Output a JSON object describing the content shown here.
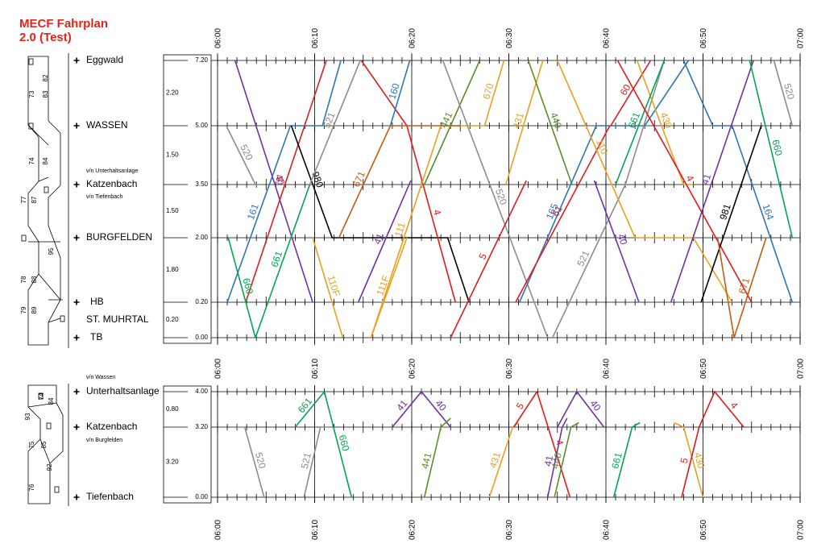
{
  "title": "MECF Fahrplan",
  "subtitle": "2.0 (Test)",
  "times": [
    "06:00",
    "06:10",
    "06:20",
    "06:30",
    "06:40",
    "06:50",
    "07:00"
  ],
  "panels": [
    {
      "stations": [
        {
          "name": "Eggwald",
          "km": {
            "value": 7.2,
            "label": "7.20"
          }
        },
        {
          "name": "WASSEN",
          "km": {
            "value": 5.0,
            "label": "5.00"
          }
        },
        {
          "name": "Katzenbach",
          "km": {
            "value": 3.5,
            "label": "3.50"
          }
        },
        {
          "name": "BURGFELDEN",
          "km": {
            "value": 2.0,
            "label": "2.00"
          }
        },
        {
          "name": "HB",
          "km": {
            "value": 0.2,
            "label": "0.20"
          }
        },
        {
          "name": "TB",
          "km": {
            "value": 0.0,
            "label": "0.00"
          }
        }
      ],
      "extra_station": "ST. MUHRTAL",
      "notes": [
        "v/n Unterhaltsanlage",
        "v/n Tiefenbach"
      ],
      "sections": [
        "2.20",
        "1.50",
        "1.50",
        "1.80",
        "0.20"
      ],
      "trains": [
        {
          "label": "40",
          "color": "#7030a0",
          "points": [
            [
              1.8,
              7.2
            ],
            [
              9.8,
              0.2
            ]
          ]
        },
        {
          "label": "520",
          "color": "#8c8c8c",
          "points": [
            [
              0.9,
              5.0
            ],
            [
              3.9,
              3.5
            ],
            [
              4.5,
              3.5
            ]
          ]
        },
        {
          "label": "161",
          "color": "#2e75b6",
          "points": [
            [
              1,
              0.2
            ],
            [
              7.5,
              5.0
            ],
            [
              10.8,
              5.0
            ],
            [
              12.7,
              7.2
            ]
          ]
        },
        {
          "label": "5",
          "color": "#e31a1c",
          "points": [
            [
              2.9,
              0.2
            ],
            [
              11.2,
              7.2
            ]
          ]
        },
        {
          "label": "660",
          "color": "#00a651",
          "points": [
            [
              1.1,
              2.0
            ],
            [
              3.9,
              0.0
            ]
          ]
        },
        {
          "label": "661",
          "color": "#00a651",
          "points": [
            [
              3.9,
              0.0
            ],
            [
              9.5,
              3.5
            ]
          ]
        },
        {
          "label": "980",
          "color": "#000000",
          "points": [
            [
              7.6,
              5.0
            ],
            [
              11.8,
              2.0
            ],
            [
              23.7,
              2.0
            ],
            [
              25.9,
              0.2
            ]
          ]
        },
        {
          "label": "521",
          "color": "#8c8c8c",
          "points": [
            [
              9.5,
              3.5
            ],
            [
              14.7,
              7.2
            ]
          ]
        },
        {
          "label": "4",
          "color": "#e31a1c",
          "points": [
            [
              14.8,
              7.2
            ],
            [
              19.5,
              5.0
            ],
            [
              24.5,
              0.2
            ]
          ]
        },
        {
          "label": "160",
          "color": "#2e75b6",
          "points": [
            [
              17.8,
              5.0
            ],
            [
              19.8,
              7.2
            ]
          ]
        },
        {
          "label": "110F",
          "color": "#e6a11f",
          "points": [
            [
              9.8,
              2.0
            ],
            [
              12.9,
              0.0
            ]
          ]
        },
        {
          "label": "111F",
          "color": "#e6a11f",
          "points": [
            [
              15.8,
              0.0
            ],
            [
              19.5,
              2.0
            ]
          ]
        },
        {
          "label": "111",
          "color": "#e6a11f",
          "points": [
            [
              15.8,
              0.0
            ],
            [
              23,
              5.0
            ],
            [
              27.5,
              5.0
            ]
          ]
        },
        {
          "label": "671",
          "color": "#c55a11",
          "points": [
            [
              12.5,
              2.0
            ],
            [
              17.8,
              5.0
            ],
            [
              25,
              5.0
            ]
          ]
        },
        {
          "label": "670",
          "color": "#e6a11f",
          "points": [
            [
              27.5,
              5.0
            ],
            [
              29.5,
              7.2
            ]
          ]
        },
        {
          "label": "41",
          "color": "#7030a0",
          "points": [
            [
              14.5,
              0.2
            ],
            [
              19.9,
              3.6
            ]
          ]
        },
        {
          "label": "441",
          "color": "#5b8c2a",
          "points": [
            [
              21.3,
              3.5
            ],
            [
              27,
              7.2
            ]
          ]
        },
        {
          "label": "520",
          "color": "#8c8c8c",
          "points": [
            [
              23.2,
              7.2
            ],
            [
              34,
              0.0
            ]
          ]
        },
        {
          "label": "5",
          "color": "#e31a1c",
          "points": [
            [
              24,
              0.0
            ],
            [
              31.8,
              3.6
            ]
          ]
        },
        {
          "label": "431",
          "color": "#e6a11f",
          "points": [
            [
              29.7,
              3.5
            ],
            [
              33.5,
              7.2
            ]
          ]
        },
        {
          "label": "440",
          "color": "#5b8c2a",
          "points": [
            [
              32,
              7.2
            ],
            [
              36.5,
              3.5
            ]
          ]
        },
        {
          "label": "165",
          "color": "#2e75b6",
          "points": [
            [
              31.1,
              0.2
            ],
            [
              39,
              5.0
            ],
            [
              44,
              5.0
            ],
            [
              48.5,
              7.2
            ]
          ]
        },
        {
          "label": "61",
          "color": "#e31a1c",
          "points": [
            [
              30.7,
              0.2
            ],
            [
              40.4,
              5.0
            ]
          ]
        },
        {
          "label": "521",
          "color": "#8c8c8c",
          "points": [
            [
              34.5,
              0.0
            ],
            [
              42,
              3.5
            ],
            [
              46,
              7.2
            ]
          ]
        },
        {
          "label": "110",
          "color": "#e6a11f",
          "points": [
            [
              35,
              7.2
            ],
            [
              43,
              2.0
            ],
            [
              49,
              2.0
            ],
            [
              53,
              0.2
            ]
          ]
        },
        {
          "label": "60",
          "color": "#e31a1c",
          "points": [
            [
              40.5,
              5.0
            ],
            [
              44.6,
              7.2
            ]
          ]
        },
        {
          "label": "40",
          "color": "#7030a0",
          "points": [
            [
              38.8,
              3.6
            ],
            [
              43.4,
              0.2
            ]
          ]
        },
        {
          "label": "430",
          "color": "#e6a11f",
          "points": [
            [
              43.2,
              7.2
            ],
            [
              48,
              3.5
            ],
            [
              49,
              3.5
            ]
          ]
        },
        {
          "label": "661",
          "color": "#00a651",
          "points": [
            [
              41,
              3.5
            ],
            [
              46,
              7.2
            ]
          ]
        },
        {
          "label": "164",
          "color": "#2e75b6",
          "points": [
            [
              48,
              7.2
            ],
            [
              51,
              5.0
            ],
            [
              53,
              5.0
            ],
            [
              59.2,
              0.2
            ]
          ]
        },
        {
          "label": "4",
          "color": "#e31a1c",
          "points": [
            [
              41.2,
              7.2
            ],
            [
              55,
              0.2
            ]
          ]
        },
        {
          "label": "41",
          "color": "#7030a0",
          "points": [
            [
              46.7,
              0.2
            ],
            [
              55.2,
              7.2
            ]
          ]
        },
        {
          "label": "981",
          "color": "#000000",
          "points": [
            [
              49.8,
              0.2
            ],
            [
              56,
              5.0
            ]
          ]
        },
        {
          "label": "671",
          "color": "#c55a11",
          "points": [
            [
              51.5,
              2.0
            ],
            [
              53.2,
              0.0
            ],
            [
              56.5,
              2.0
            ]
          ]
        },
        {
          "label": "660",
          "color": "#00a651",
          "points": [
            [
              54.8,
              7.2
            ],
            [
              59.2,
              2.0
            ]
          ]
        },
        {
          "label": "520",
          "color": "#8c8c8c",
          "points": [
            [
              57.3,
              7.2
            ],
            [
              59.2,
              5.0
            ]
          ]
        }
      ]
    },
    {
      "stations": [
        {
          "name": "Unterhaltsanlage",
          "km": {
            "value": 4.0,
            "label": "4.00"
          }
        },
        {
          "name": "Katzenbach",
          "km": {
            "value": 3.2,
            "label": "3.20"
          }
        },
        {
          "name": "Tiefenbach",
          "km": {
            "value": 0.0,
            "label": "0.00"
          }
        }
      ],
      "notes": [
        "v/n Wassen",
        "v/n Burgfelden"
      ],
      "sections": [
        "0.80",
        "3.20"
      ],
      "trains": [
        {
          "label": "520",
          "color": "#8c8c8c",
          "points": [
            [
              2,
              3.2
            ],
            [
              2.8,
              3.2
            ],
            [
              4.8,
              0.0
            ]
          ]
        },
        {
          "label": "521",
          "color": "#8c8c8c",
          "points": [
            [
              8.9,
              0.0
            ],
            [
              10.6,
              3.2
            ],
            [
              11.5,
              3.2
            ]
          ]
        },
        {
          "label": "661",
          "color": "#00a651",
          "points": [
            [
              8,
              3.2
            ],
            [
              11,
              4.0
            ]
          ]
        },
        {
          "label": "660",
          "color": "#00a651",
          "points": [
            [
              11,
              4.0
            ],
            [
              13.8,
              0.0
            ]
          ]
        },
        {
          "label": "41",
          "color": "#7030a0",
          "points": [
            [
              18,
              3.2
            ],
            [
              21,
              4.0
            ]
          ]
        },
        {
          "label": "40",
          "color": "#7030a0",
          "points": [
            [
              21,
              4.0
            ],
            [
              24,
              3.2
            ]
          ]
        },
        {
          "label": "441",
          "color": "#5b8c2a",
          "points": [
            [
              21.3,
              0.0
            ],
            [
              23,
              3.2
            ],
            [
              24,
              3.4
            ]
          ]
        },
        {
          "label": "431",
          "color": "#e6a11f",
          "points": [
            [
              28,
              0.0
            ],
            [
              30.4,
              3.2
            ],
            [
              31,
              3.3
            ]
          ]
        },
        {
          "label": "5",
          "color": "#e31a1c",
          "points": [
            [
              30.5,
              3.2
            ],
            [
              32.9,
              4.0
            ]
          ]
        },
        {
          "label": "4",
          "color": "#e31a1c",
          "points": [
            [
              32.9,
              4.0
            ],
            [
              36.3,
              0.0
            ]
          ]
        },
        {
          "label": "41",
          "color": "#7030a0",
          "points": [
            [
              34,
              0.0
            ],
            [
              35.5,
              3.2
            ],
            [
              36,
              3.4
            ]
          ]
        },
        {
          "label": "440",
          "color": "#5b8c2a",
          "points": [
            [
              37.2,
              3.3
            ],
            [
              36.4,
              3.2
            ],
            [
              34.7,
              0.0
            ]
          ]
        },
        {
          "label": "40",
          "color": "#7030a0",
          "points": [
            [
              35,
              3.2
            ],
            [
              37,
              4.0
            ],
            [
              39.8,
              3.2
            ]
          ]
        },
        {
          "label": "661",
          "color": "#00a651",
          "points": [
            [
              40.8,
              0.0
            ],
            [
              42.7,
              3.2
            ],
            [
              43.5,
              3.3
            ]
          ]
        },
        {
          "label": "430",
          "color": "#e6a11f",
          "points": [
            [
              47,
              3.3
            ],
            [
              48,
              3.2
            ],
            [
              50,
              0.0
            ]
          ]
        },
        {
          "label": "5",
          "color": "#e31a1c",
          "points": [
            [
              47.8,
              0.0
            ],
            [
              49.6,
              3.2
            ]
          ]
        },
        {
          "label": "4",
          "color": "#e31a1c",
          "points": [
            [
              49.6,
              3.2
            ],
            [
              51.2,
              4.0
            ],
            [
              54.2,
              3.2
            ]
          ]
        }
      ]
    }
  ],
  "schematic": [
    [
      "73",
      "83",
      "82",
      "74",
      "84",
      "77",
      "87",
      "95",
      "78",
      "88",
      "79",
      "89"
    ],
    [
      "93",
      "74",
      "84",
      "75",
      "85",
      "92",
      "76"
    ]
  ]
}
